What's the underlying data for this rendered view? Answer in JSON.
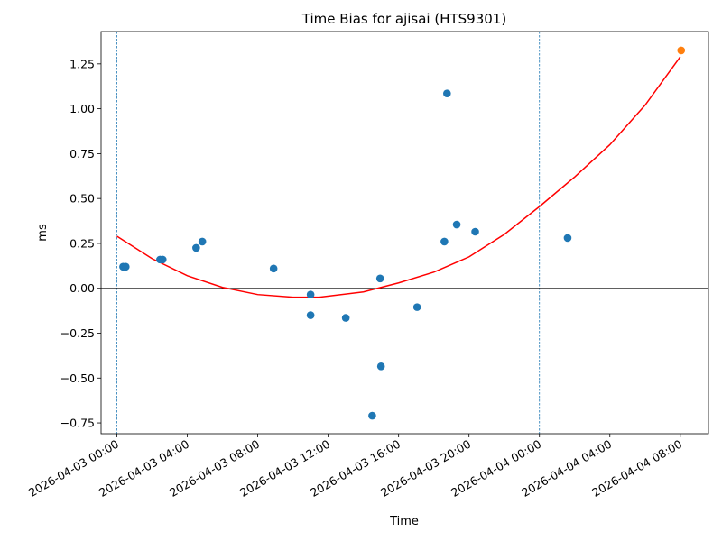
{
  "chart_data": {
    "type": "scatter",
    "title": "Time Bias for ajisai (HTS9301)",
    "xlabel": "Time",
    "ylabel": "ms",
    "x_range_hours": [
      -0.9,
      33.6
    ],
    "ylim": [
      -0.81,
      1.43
    ],
    "y_ticks": [
      -0.75,
      -0.5,
      -0.25,
      0.0,
      0.25,
      0.5,
      0.75,
      1.0,
      1.25
    ],
    "y_tick_labels": [
      "−0.75",
      "−0.50",
      "−0.25",
      "0.00",
      "0.25",
      "0.50",
      "0.75",
      "1.00",
      "1.25"
    ],
    "x_ticks": [
      {
        "h": 0,
        "label": "2026-04-03 00:00"
      },
      {
        "h": 4,
        "label": "2026-04-03 04:00"
      },
      {
        "h": 8,
        "label": "2026-04-03 08:00"
      },
      {
        "h": 12,
        "label": "2026-04-03 12:00"
      },
      {
        "h": 16,
        "label": "2026-04-03 16:00"
      },
      {
        "h": 20,
        "label": "2026-04-03 20:00"
      },
      {
        "h": 24,
        "label": "2026-04-04 00:00"
      },
      {
        "h": 28,
        "label": "2026-04-04 04:00"
      },
      {
        "h": 32,
        "label": "2026-04-04 08:00"
      }
    ],
    "day_boundaries_hours": [
      0,
      24
    ],
    "zero_line": 0,
    "series": [
      {
        "kind": "scatter",
        "color": "#1f77b4",
        "points": [
          {
            "x": 0.35,
            "y": 0.12
          },
          {
            "x": 0.5,
            "y": 0.12
          },
          {
            "x": 2.45,
            "y": 0.16
          },
          {
            "x": 2.6,
            "y": 0.16
          },
          {
            "x": 4.5,
            "y": 0.225
          },
          {
            "x": 4.85,
            "y": 0.26
          },
          {
            "x": 8.9,
            "y": 0.11
          },
          {
            "x": 11.0,
            "y": -0.035
          },
          {
            "x": 11.0,
            "y": -0.15
          },
          {
            "x": 13.0,
            "y": -0.165
          },
          {
            "x": 14.5,
            "y": -0.71
          },
          {
            "x": 14.95,
            "y": 0.055
          },
          {
            "x": 15.0,
            "y": -0.435
          },
          {
            "x": 17.05,
            "y": -0.105
          },
          {
            "x": 18.6,
            "y": 0.26
          },
          {
            "x": 18.75,
            "y": 1.085
          },
          {
            "x": 19.3,
            "y": 0.355
          },
          {
            "x": 20.35,
            "y": 0.315
          },
          {
            "x": 25.6,
            "y": 0.28
          }
        ]
      },
      {
        "kind": "scatter",
        "color": "#ff7f0e",
        "points": [
          {
            "x": 32.05,
            "y": 1.325
          }
        ]
      },
      {
        "kind": "curve",
        "color": "#ff0000",
        "points": [
          {
            "x": 0.0,
            "y": 0.29
          },
          {
            "x": 2.0,
            "y": 0.165
          },
          {
            "x": 4.0,
            "y": 0.07
          },
          {
            "x": 6.0,
            "y": 0.005
          },
          {
            "x": 8.0,
            "y": -0.035
          },
          {
            "x": 10.0,
            "y": -0.05
          },
          {
            "x": 11.5,
            "y": -0.05
          },
          {
            "x": 14.0,
            "y": -0.02
          },
          {
            "x": 16.0,
            "y": 0.03
          },
          {
            "x": 18.0,
            "y": 0.09
          },
          {
            "x": 20.0,
            "y": 0.175
          },
          {
            "x": 22.0,
            "y": 0.3
          },
          {
            "x": 24.0,
            "y": 0.455
          },
          {
            "x": 26.0,
            "y": 0.62
          },
          {
            "x": 28.0,
            "y": 0.8
          },
          {
            "x": 30.0,
            "y": 1.02
          },
          {
            "x": 32.0,
            "y": 1.29
          }
        ]
      }
    ],
    "grid": false
  }
}
